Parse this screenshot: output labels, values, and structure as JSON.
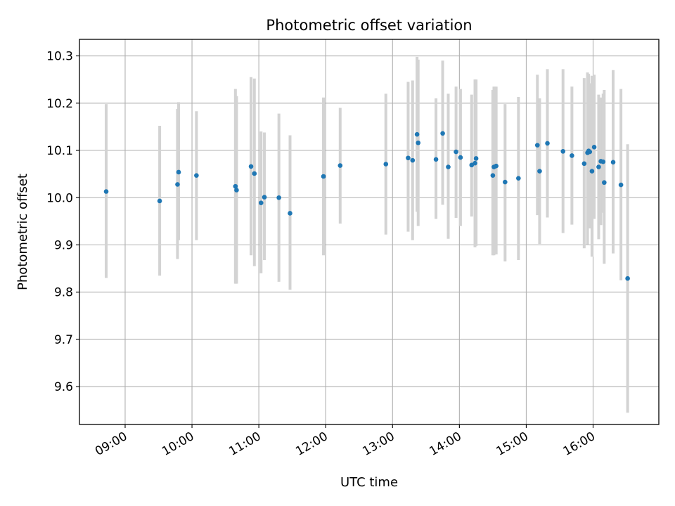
{
  "chart_data": {
    "type": "scatter",
    "title": "Photometric offset variation",
    "xlabel": "UTC time",
    "ylabel": "Photometric offset",
    "x_ticks": [
      "09:00",
      "10:00",
      "11:00",
      "12:00",
      "13:00",
      "14:00",
      "15:00",
      "16:00"
    ],
    "y_ticks": [
      "9.6",
      "9.7",
      "9.8",
      "9.9",
      "10.0",
      "10.1",
      "10.2",
      "10.3"
    ],
    "xlim": [
      "08:19",
      "16:59"
    ],
    "ylim": [
      9.52,
      10.335
    ],
    "grid": true,
    "colors": {
      "point": "#1f77b4",
      "errorbar": "#d3d3d3",
      "grid": "#b0b0b0"
    },
    "series": [
      {
        "x": [
          "08:43",
          "09:31",
          "09:47",
          "09:48",
          "10:04",
          "10:39",
          "10:40",
          "10:53",
          "10:56",
          "11:02",
          "11:05",
          "11:18",
          "11:28",
          "11:58",
          "12:13",
          "12:54",
          "13:14",
          "13:18",
          "13:22",
          "13:23",
          "13:39",
          "13:45",
          "13:50",
          "13:57",
          "14:01",
          "14:11",
          "14:14",
          "14:15",
          "14:30",
          "14:31",
          "14:33",
          "14:41",
          "14:53",
          "15:10",
          "15:12",
          "15:19",
          "15:33",
          "15:41",
          "15:52",
          "15:55",
          "15:56",
          "15:57",
          "15:59",
          "16:01",
          "16:05",
          "16:07",
          "16:09",
          "16:10",
          "16:18",
          "16:25",
          "16:31"
        ],
        "y": [
          10.013,
          9.993,
          10.028,
          10.054,
          10.047,
          10.024,
          10.016,
          10.066,
          10.051,
          9.989,
          10.001,
          10.0,
          9.967,
          10.045,
          10.068,
          10.071,
          10.084,
          10.079,
          10.134,
          10.116,
          10.081,
          10.136,
          10.065,
          10.097,
          10.085,
          10.069,
          10.073,
          10.083,
          10.047,
          10.065,
          10.067,
          10.033,
          10.041,
          10.111,
          10.056,
          10.115,
          10.098,
          10.089,
          10.072,
          10.095,
          10.099,
          10.097,
          10.056,
          10.107,
          10.065,
          10.077,
          10.076,
          10.032,
          10.075,
          10.027,
          9.829
        ],
        "err_low": [
          9.83,
          9.835,
          9.87,
          9.91,
          9.91,
          9.818,
          9.818,
          9.878,
          9.855,
          9.84,
          9.868,
          9.822,
          9.805,
          9.878,
          9.945,
          9.922,
          9.928,
          9.91,
          9.97,
          9.94,
          9.955,
          9.985,
          9.913,
          9.957,
          9.94,
          9.96,
          9.895,
          9.898,
          9.878,
          9.878,
          9.88,
          9.865,
          9.868,
          9.963,
          9.902,
          9.958,
          9.925,
          9.943,
          9.893,
          9.9,
          9.955,
          9.935,
          9.875,
          9.955,
          9.912,
          9.942,
          9.968,
          9.86,
          9.882,
          9.825,
          9.545
        ],
        "err_high": [
          10.198,
          10.152,
          10.188,
          10.202,
          10.183,
          10.23,
          10.215,
          10.255,
          10.252,
          10.14,
          10.138,
          10.178,
          10.132,
          10.212,
          10.19,
          10.22,
          10.245,
          10.248,
          10.298,
          10.292,
          10.21,
          10.29,
          10.22,
          10.235,
          10.23,
          10.218,
          10.25,
          10.25,
          10.228,
          10.235,
          10.235,
          10.198,
          10.213,
          10.26,
          10.21,
          10.272,
          10.272,
          10.235,
          10.253,
          10.265,
          10.262,
          10.242,
          10.258,
          10.26,
          10.218,
          10.212,
          10.22,
          10.228,
          10.27,
          10.23,
          10.113
        ]
      }
    ]
  }
}
